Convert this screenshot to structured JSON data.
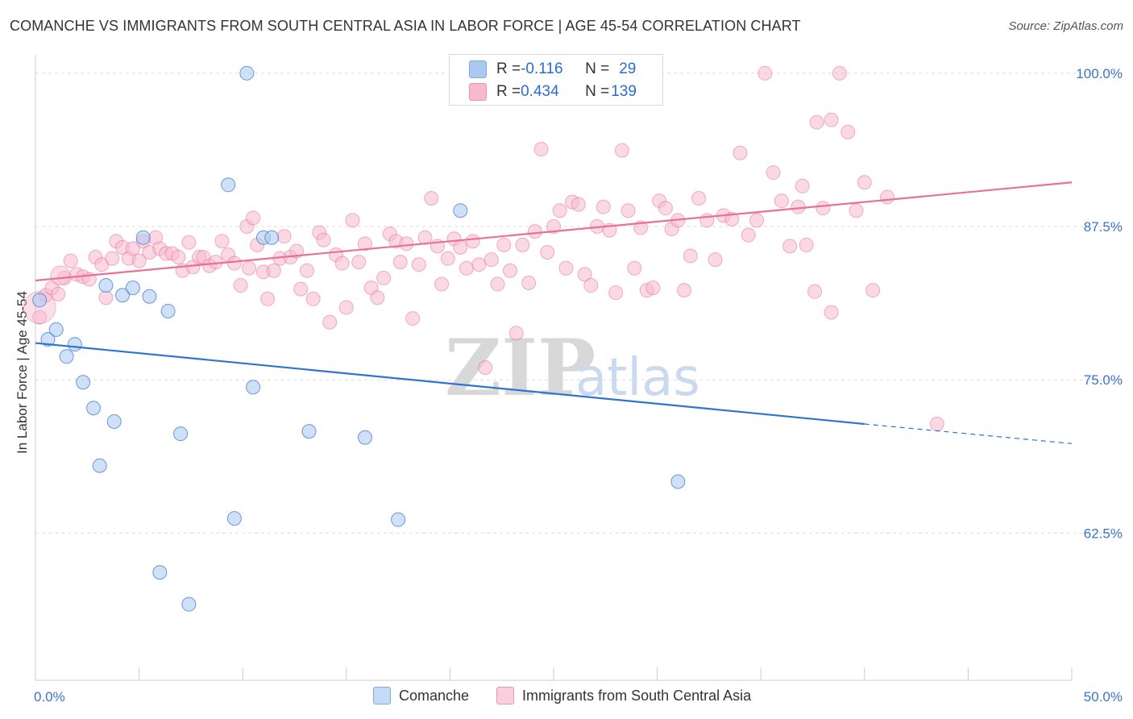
{
  "title": "COMANCHE VS IMMIGRANTS FROM SOUTH CENTRAL ASIA IN LABOR FORCE | AGE 45-54 CORRELATION CHART",
  "source": "Source: ZipAtlas.com",
  "watermark": {
    "zip": "ZIP",
    "atlas": "atlas"
  },
  "legend_top": {
    "rows": [
      {
        "r_label": "R = ",
        "r_value": "-0.116",
        "n_label": "N = ",
        "n_value": "29",
        "color": "#aac8f0"
      },
      {
        "r_label": "R = ",
        "r_value": "0.434",
        "n_label": "N = ",
        "n_value": "139",
        "color": "#f7b9cd"
      }
    ]
  },
  "legend_bottom": [
    {
      "label": "Comanche",
      "color": "#aac8f0"
    },
    {
      "label": "Immigrants from South Central Asia",
      "color": "#f7b9cd"
    }
  ],
  "chart_data": {
    "type": "scatter",
    "title": "COMANCHE VS IMMIGRANTS FROM SOUTH CENTRAL ASIA IN LABOR FORCE | AGE 45-54 CORRELATION CHART",
    "xlabel": "",
    "ylabel": "In Labor Force | Age 45-54",
    "xlim": [
      0,
      50
    ],
    "ylim": [
      50.5,
      101.5
    ],
    "x_tick_labels": [
      "0.0%",
      "50.0%"
    ],
    "y_ticks": [
      62.5,
      75.0,
      87.5,
      100.0
    ],
    "y_tick_labels": [
      "62.5%",
      "75.0%",
      "87.5%",
      "100.0%"
    ],
    "grid": true,
    "legend_position": "top-center",
    "colors": {
      "comanche": "#2f74d0",
      "immigrants": "#e8709a",
      "comanche_fill": "#aac8f0",
      "immigrants_fill": "#f7b9cd",
      "grid": "#dcdcdc",
      "tick_label": "#3a74c9"
    },
    "series": [
      {
        "name": "Comanche",
        "trend": {
          "x": [
            0,
            40
          ],
          "y": [
            78.0,
            71.4
          ],
          "dashed_to": [
            50,
            69.8
          ]
        },
        "points": [
          [
            0.2,
            81.5
          ],
          [
            0.6,
            78.3
          ],
          [
            1.0,
            79.1
          ],
          [
            1.5,
            76.9
          ],
          [
            1.9,
            77.9
          ],
          [
            2.3,
            74.8
          ],
          [
            2.8,
            72.7
          ],
          [
            3.1,
            68.0
          ],
          [
            3.4,
            82.7
          ],
          [
            3.8,
            71.6
          ],
          [
            4.2,
            81.9
          ],
          [
            4.7,
            82.5
          ],
          [
            5.2,
            86.6
          ],
          [
            5.5,
            81.8
          ],
          [
            6.0,
            59.3
          ],
          [
            6.4,
            80.6
          ],
          [
            7.0,
            70.6
          ],
          [
            7.4,
            56.7
          ],
          [
            9.3,
            90.9
          ],
          [
            9.6,
            63.7
          ],
          [
            10.2,
            100.0
          ],
          [
            10.5,
            74.4
          ],
          [
            11.0,
            86.6
          ],
          [
            11.4,
            86.6
          ],
          [
            13.2,
            70.8
          ],
          [
            15.9,
            70.3
          ],
          [
            17.5,
            63.6
          ],
          [
            20.5,
            88.8
          ],
          [
            31.0,
            66.7
          ]
        ]
      },
      {
        "name": "Immigrants from South Central Asia",
        "trend": {
          "x": [
            0,
            50
          ],
          "y": [
            83.1,
            91.1
          ]
        },
        "points": [
          [
            0.2,
            80.1
          ],
          [
            0.5,
            81.9
          ],
          [
            0.8,
            82.5
          ],
          [
            1.1,
            82.0
          ],
          [
            1.4,
            83.3
          ],
          [
            1.7,
            84.7
          ],
          [
            2.0,
            83.6
          ],
          [
            2.3,
            83.4
          ],
          [
            2.6,
            83.2
          ],
          [
            2.9,
            85.0
          ],
          [
            3.2,
            84.4
          ],
          [
            3.4,
            81.7
          ],
          [
            3.7,
            84.9
          ],
          [
            3.9,
            86.3
          ],
          [
            4.2,
            85.8
          ],
          [
            4.5,
            84.9
          ],
          [
            4.7,
            85.7
          ],
          [
            5.0,
            84.7
          ],
          [
            5.2,
            86.3
          ],
          [
            5.5,
            85.4
          ],
          [
            5.8,
            86.6
          ],
          [
            6.0,
            85.7
          ],
          [
            6.3,
            85.3
          ],
          [
            6.6,
            85.3
          ],
          [
            6.9,
            85.0
          ],
          [
            7.1,
            83.9
          ],
          [
            7.4,
            86.2
          ],
          [
            7.6,
            84.2
          ],
          [
            7.9,
            85.0
          ],
          [
            8.1,
            85.0
          ],
          [
            8.4,
            84.3
          ],
          [
            8.7,
            84.6
          ],
          [
            9.0,
            86.3
          ],
          [
            9.3,
            85.2
          ],
          [
            9.6,
            84.5
          ],
          [
            9.9,
            82.7
          ],
          [
            10.2,
            87.5
          ],
          [
            10.5,
            88.2
          ],
          [
            10.7,
            86.0
          ],
          [
            11.0,
            83.8
          ],
          [
            11.2,
            81.6
          ],
          [
            11.5,
            83.9
          ],
          [
            11.8,
            84.9
          ],
          [
            12.0,
            86.7
          ],
          [
            12.3,
            85.0
          ],
          [
            12.6,
            85.5
          ],
          [
            12.8,
            82.4
          ],
          [
            13.1,
            83.9
          ],
          [
            13.4,
            81.6
          ],
          [
            13.7,
            87.0
          ],
          [
            13.9,
            86.4
          ],
          [
            14.2,
            79.7
          ],
          [
            14.5,
            85.2
          ],
          [
            14.8,
            84.5
          ],
          [
            15.0,
            80.9
          ],
          [
            15.3,
            88.0
          ],
          [
            15.6,
            84.6
          ],
          [
            15.9,
            86.1
          ],
          [
            16.2,
            82.5
          ],
          [
            16.5,
            81.7
          ],
          [
            16.8,
            83.3
          ],
          [
            17.1,
            86.9
          ],
          [
            17.4,
            86.3
          ],
          [
            17.6,
            84.6
          ],
          [
            17.9,
            86.1
          ],
          [
            18.2,
            80.0
          ],
          [
            18.5,
            84.4
          ],
          [
            18.8,
            86.6
          ],
          [
            19.1,
            89.8
          ],
          [
            19.4,
            85.9
          ],
          [
            19.6,
            82.8
          ],
          [
            19.9,
            84.9
          ],
          [
            20.2,
            86.5
          ],
          [
            20.5,
            85.8
          ],
          [
            20.8,
            84.1
          ],
          [
            21.1,
            86.3
          ],
          [
            21.4,
            84.4
          ],
          [
            21.7,
            76.0
          ],
          [
            22.0,
            84.8
          ],
          [
            22.3,
            82.8
          ],
          [
            22.6,
            86.0
          ],
          [
            22.9,
            83.9
          ],
          [
            23.2,
            78.8
          ],
          [
            23.5,
            86.0
          ],
          [
            23.8,
            82.9
          ],
          [
            24.1,
            87.1
          ],
          [
            24.4,
            93.8
          ],
          [
            24.7,
            85.4
          ],
          [
            25.0,
            87.5
          ],
          [
            25.3,
            88.8
          ],
          [
            25.6,
            84.1
          ],
          [
            25.9,
            89.5
          ],
          [
            26.2,
            89.3
          ],
          [
            26.5,
            83.6
          ],
          [
            26.8,
            82.7
          ],
          [
            27.1,
            87.5
          ],
          [
            27.4,
            89.1
          ],
          [
            27.7,
            87.2
          ],
          [
            28.0,
            82.1
          ],
          [
            28.3,
            93.7
          ],
          [
            28.6,
            88.8
          ],
          [
            28.9,
            84.1
          ],
          [
            29.2,
            87.4
          ],
          [
            29.5,
            82.3
          ],
          [
            29.8,
            82.5
          ],
          [
            30.1,
            89.6
          ],
          [
            30.4,
            89.0
          ],
          [
            30.7,
            87.3
          ],
          [
            31.0,
            88.0
          ],
          [
            31.3,
            82.3
          ],
          [
            31.6,
            85.1
          ],
          [
            32.0,
            89.8
          ],
          [
            32.4,
            88.0
          ],
          [
            32.8,
            84.8
          ],
          [
            33.2,
            88.4
          ],
          [
            33.6,
            88.1
          ],
          [
            34.0,
            93.5
          ],
          [
            34.4,
            86.8
          ],
          [
            34.8,
            88.0
          ],
          [
            35.2,
            100.0
          ],
          [
            35.6,
            91.9
          ],
          [
            36.0,
            89.6
          ],
          [
            36.4,
            85.9
          ],
          [
            36.8,
            89.1
          ],
          [
            37.2,
            86.0
          ],
          [
            37.6,
            82.2
          ],
          [
            38.0,
            89.0
          ],
          [
            38.4,
            80.5
          ],
          [
            38.8,
            100.0
          ],
          [
            39.2,
            95.2
          ],
          [
            37.7,
            96.0
          ],
          [
            38.4,
            96.2
          ],
          [
            37.0,
            90.8
          ],
          [
            39.6,
            88.8
          ],
          [
            40.0,
            91.1
          ],
          [
            40.4,
            82.3
          ],
          [
            41.1,
            89.9
          ],
          [
            43.5,
            71.4
          ],
          [
            10.3,
            84.1
          ]
        ]
      }
    ]
  }
}
